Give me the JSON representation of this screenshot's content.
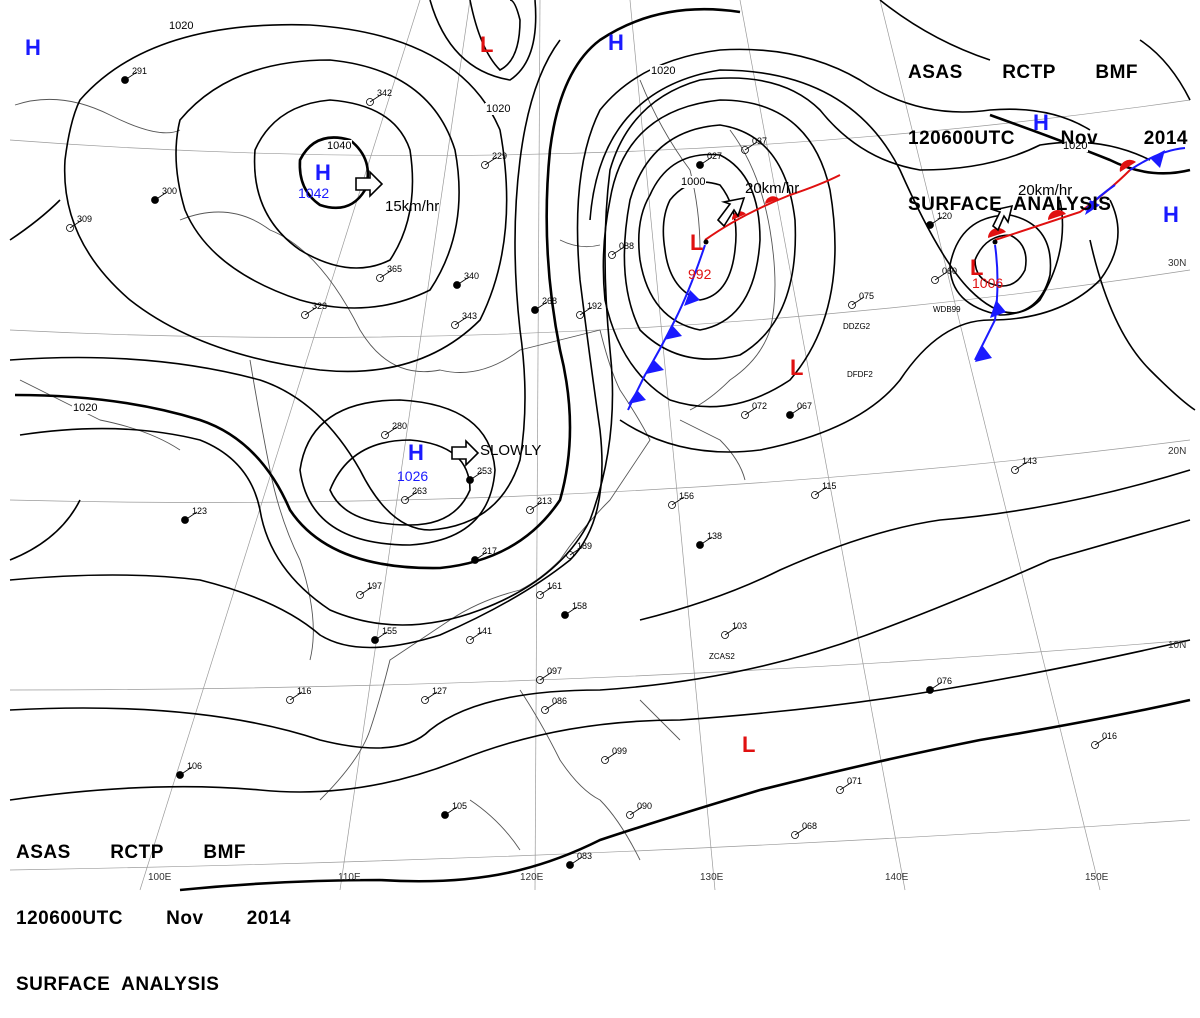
{
  "header": {
    "line1": [
      "ASAS",
      "RCTP",
      "BMF"
    ],
    "line2": [
      "120600UTC",
      "Nov",
      "2014"
    ],
    "line3": "SURFACE  ANALYSIS"
  },
  "longitude_labels": [
    "100E",
    "110E",
    "120E",
    "130E",
    "140E",
    "150E"
  ],
  "latitude_labels": [
    "30N",
    "20N",
    "10N"
  ],
  "pressure_systems": [
    {
      "type": "H",
      "value": "1042",
      "motion": "15km/hr"
    },
    {
      "type": "H",
      "value": "1026",
      "motion": "SLOWLY"
    },
    {
      "type": "L",
      "value": "992",
      "motion": "20km/hr"
    },
    {
      "type": "L",
      "value": "1006",
      "motion": "20km/hr"
    },
    {
      "type": "H",
      "value": ""
    },
    {
      "type": "H",
      "value": ""
    },
    {
      "type": "H",
      "value": ""
    },
    {
      "type": "H",
      "value": ""
    },
    {
      "type": "L",
      "value": ""
    },
    {
      "type": "L",
      "value": ""
    },
    {
      "type": "L",
      "value": ""
    }
  ],
  "isobar_labels": [
    "1040",
    "1020",
    "1020",
    "1020",
    "1000",
    "1020",
    "1020"
  ],
  "station_samples": [
    "291",
    "342",
    "229",
    "300",
    "309",
    "365",
    "340",
    "323",
    "343",
    "268",
    "192",
    "088",
    "027",
    "037",
    "075",
    "120",
    "060",
    "280",
    "253",
    "263",
    "213",
    "217",
    "189",
    "161",
    "158",
    "141",
    "156",
    "138",
    "143",
    "115",
    "067",
    "072",
    "197",
    "155",
    "127",
    "116",
    "106",
    "097",
    "086",
    "105",
    "099",
    "090",
    "083",
    "071",
    "068",
    "076",
    "016",
    "103",
    "123"
  ],
  "station_ids": [
    "DDZG2",
    "DFDF2",
    "WDB99",
    "ZCAS2"
  ],
  "colors": {
    "high": "#1a1aff",
    "low": "#e01010",
    "coast": "#555555",
    "isobar": "#000000",
    "grid": "#888888"
  }
}
